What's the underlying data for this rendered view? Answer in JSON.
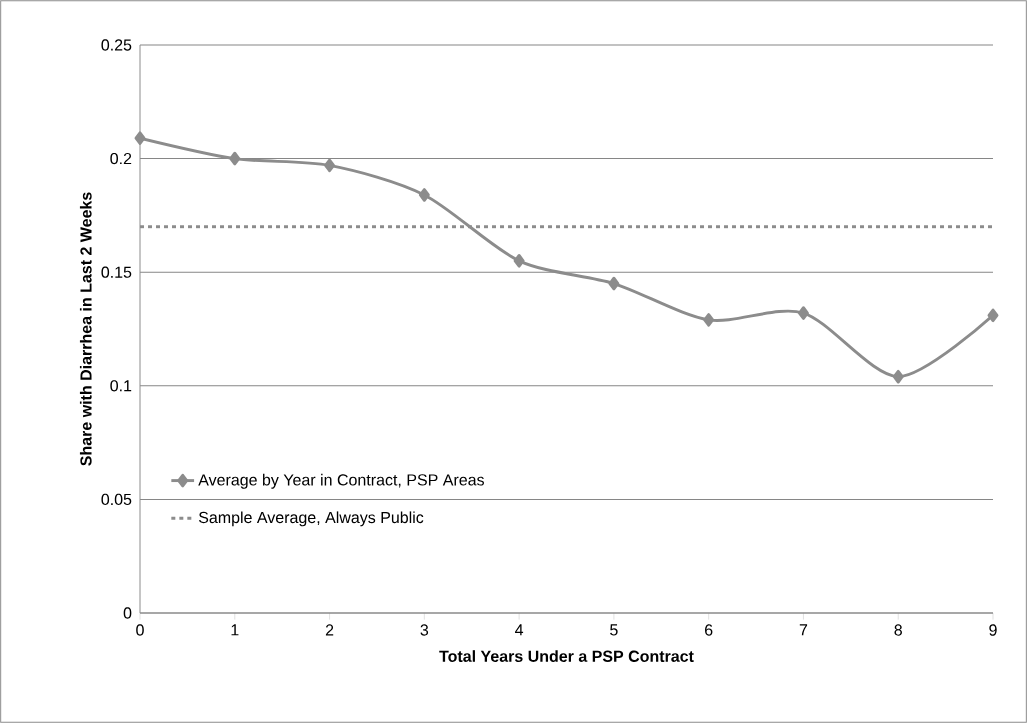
{
  "chart_data": {
    "type": "line",
    "xlabel": "Total Years Under a PSP Contract",
    "ylabel": "Share with Diarrhea in Last  2 Weeks",
    "x": [
      0,
      1,
      2,
      3,
      4,
      5,
      6,
      7,
      8,
      9
    ],
    "series": [
      {
        "name": "Average by Year in Contract, PSP Areas",
        "color": "#8c8c8c",
        "values": [
          0.209,
          0.2,
          0.197,
          0.184,
          0.155,
          0.145,
          0.129,
          0.132,
          0.104,
          0.131
        ]
      }
    ],
    "ref_lines": [
      {
        "axis": "y",
        "value": 0.17,
        "label": "Sample Average, Always Public",
        "color": "#8c8c8c",
        "line_style": "dashed"
      }
    ],
    "xlim": [
      0,
      9
    ],
    "xticks": [
      0,
      1,
      2,
      3,
      4,
      5,
      6,
      7,
      8,
      9
    ],
    "ylim": [
      0,
      0.25
    ],
    "yticks": [
      0,
      0.05,
      0.1,
      0.15,
      0.2,
      0.25
    ],
    "grid": "y",
    "legend": "bottom left",
    "marker": "diamond",
    "line_style": "solid"
  }
}
